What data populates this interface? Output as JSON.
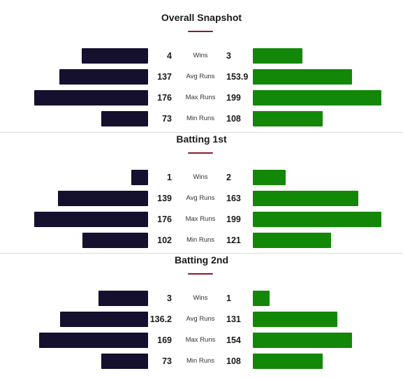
{
  "colors": {
    "left_team": "#14102e",
    "right_team": "#138808",
    "accent": "#8b1a2b"
  },
  "scale_max": 199,
  "chart_data": [
    {
      "type": "bar",
      "title": "Overall Snapshot",
      "categories": [
        "Wins",
        "Avg Runs",
        "Max Runs",
        "Min Runs"
      ],
      "series": [
        {
          "values": [
            4,
            137,
            176,
            73
          ],
          "labels": [
            "4",
            "137",
            "176",
            "73"
          ]
        },
        {
          "values": [
            3,
            153.9,
            199,
            108
          ],
          "labels": [
            "3",
            "153.9",
            "199",
            "108"
          ]
        }
      ]
    },
    {
      "type": "bar",
      "title": "Batting 1st",
      "categories": [
        "Wins",
        "Avg Runs",
        "Max Runs",
        "Min Runs"
      ],
      "series": [
        {
          "values": [
            1,
            139,
            176,
            102
          ],
          "labels": [
            "1",
            "139",
            "176",
            "102"
          ]
        },
        {
          "values": [
            2,
            163,
            199,
            121
          ],
          "labels": [
            "2",
            "163",
            "199",
            "121"
          ]
        }
      ]
    },
    {
      "type": "bar",
      "title": "Batting 2nd",
      "categories": [
        "Wins",
        "Avg Runs",
        "Max Runs",
        "Min Runs"
      ],
      "series": [
        {
          "values": [
            3,
            136.2,
            169,
            73
          ],
          "labels": [
            "3",
            "136.2",
            "169",
            "73"
          ]
        },
        {
          "values": [
            1,
            131,
            154,
            108
          ],
          "labels": [
            "1",
            "131",
            "154",
            "108"
          ]
        }
      ]
    }
  ]
}
